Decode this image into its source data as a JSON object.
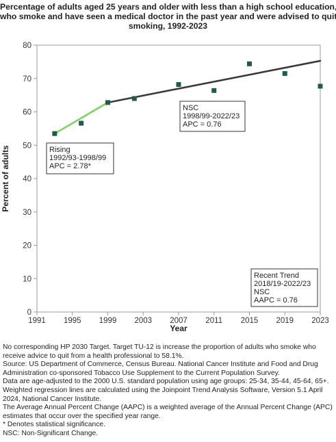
{
  "title_lines": [
    "Percentage of  adults aged 25 years and older with less than a high school education,",
    "who smoke and have seen a medical doctor in the past year and were advised to quit",
    "smoking, 1992-2023"
  ],
  "chart_data": {
    "type": "scatter",
    "xlabel": "Year",
    "ylabel": "Percent of adults",
    "xlim": [
      1991,
      2023
    ],
    "ylim": [
      0,
      80
    ],
    "xticks": [
      "1991",
      "1995",
      "1999",
      "2003",
      "2007",
      "2011",
      "2015",
      "2019",
      "2023"
    ],
    "yticks": [
      "0",
      "10",
      "20",
      "30",
      "40",
      "50",
      "60",
      "70",
      "80"
    ],
    "points": [
      {
        "x": 1993,
        "y": 53.5
      },
      {
        "x": 1996,
        "y": 56.6
      },
      {
        "x": 1999,
        "y": 62.8
      },
      {
        "x": 2002,
        "y": 64.0
      },
      {
        "x": 2007,
        "y": 68.2
      },
      {
        "x": 2011,
        "y": 66.4
      },
      {
        "x": 2015,
        "y": 74.4
      },
      {
        "x": 2019,
        "y": 71.5
      },
      {
        "x": 2023,
        "y": 67.7
      }
    ],
    "trend_segments": [
      {
        "x": [
          1993,
          1999
        ],
        "y": [
          53.5,
          62.8
        ],
        "color": "#7dd35f"
      },
      {
        "x": [
          1999,
          2023
        ],
        "y": [
          62.8,
          75.3
        ],
        "color": "#3a3a3a"
      }
    ],
    "marker_color": "#1f5c4f",
    "annotations": [
      {
        "lines": [
          "Rising",
          "1992/93-1998/99",
          "APC =  2.78*"
        ]
      },
      {
        "lines": [
          "NSC",
          "1998/99-2022/23",
          "APC =  0.76"
        ]
      },
      {
        "lines": [
          "Recent Trend",
          "2018/19-2022/23",
          "NSC",
          "AAPC =  0.76"
        ]
      }
    ]
  },
  "footnotes": [
    "No corresponding HP 2030 Target. Target TU-12 is increase the proportion of adults who smoke who receive advice to quit from a health professional to 58.1%.",
    "Source: US Department of Commerce, Census Bureau. National Cancer Institute and Food and Drug Administration co-sponsored Tobacco Use Supplement to the Current Population Survey.",
    "Data are age-adjusted to the 2000 U.S. standard population using age groups: 25-34, 35-44, 45-64, 65+.",
    "Weighted regression lines are calculated using the Joinpoint Trend Analysis Software, Version 5.1 April 2024, National Cancer Institute.",
    "The Average Annual Percent Change (AAPC) is a weighted average of the Annual Percent Change (APC) estimates that occur over the specified year range.",
    "* Denotes statistical significance.",
    "NSC: Non-Significant Change."
  ]
}
